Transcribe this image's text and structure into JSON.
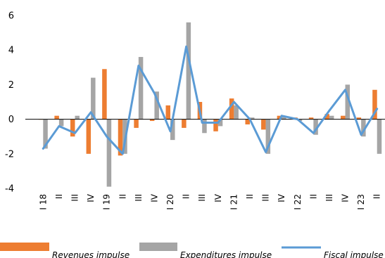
{
  "chart_data": {
    "type": "bar",
    "categories": [
      "I 18",
      "II",
      "III",
      "IV",
      "I 19",
      "II",
      "III",
      "IV",
      "I 20",
      "II",
      "III",
      "IV",
      "I 21",
      "II",
      "III",
      "IV",
      "I 22",
      "II",
      "III",
      "IV",
      "I 23",
      "II"
    ],
    "ylim": [
      -4,
      6
    ],
    "yticks": [
      -4,
      -2,
      0,
      2,
      4,
      6
    ],
    "grid": false,
    "legend_position": "bottom",
    "series": [
      {
        "name": "Revenues impulse",
        "kind": "bar",
        "color": "#ED7D31",
        "values": [
          0.0,
          0.2,
          -1.0,
          -2.0,
          2.9,
          -2.1,
          -0.5,
          -0.1,
          0.8,
          -0.5,
          1.0,
          -0.7,
          1.2,
          -0.3,
          -0.6,
          0.2,
          0.1,
          0.1,
          0.3,
          0.2,
          0.1,
          1.7
        ]
      },
      {
        "name": "Expenditures impulse",
        "kind": "bar",
        "color": "#A5A5A5",
        "values": [
          -1.7,
          -0.4,
          0.2,
          2.4,
          -3.9,
          -2.0,
          3.6,
          1.6,
          -1.2,
          5.6,
          -0.8,
          -0.4,
          0.8,
          0.1,
          -2.0,
          0.2,
          -0.1,
          -0.9,
          0.2,
          2.0,
          -1.0,
          -2.0
        ]
      },
      {
        "name": "Fiscal impulse",
        "kind": "line",
        "color": "#5B9BD5",
        "values": [
          -1.7,
          -0.4,
          -0.8,
          0.4,
          -1.0,
          -2.0,
          3.1,
          1.5,
          -0.7,
          4.2,
          -0.2,
          -0.2,
          1.0,
          0.0,
          -1.9,
          0.2,
          0.0,
          -0.8,
          0.5,
          1.7,
          -0.9,
          0.6
        ]
      }
    ]
  }
}
